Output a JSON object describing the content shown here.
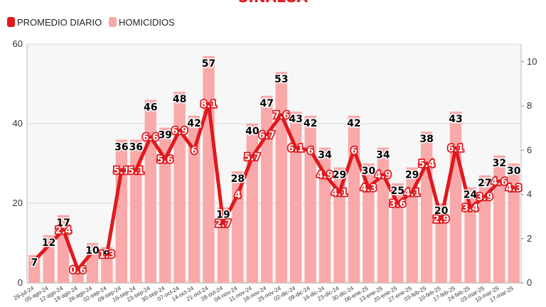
{
  "chart_data": {
    "type": "bar",
    "title": "SINALOA",
    "legend": [
      {
        "label": "PROMEDIO DIARIO",
        "color": "#e0191e"
      },
      {
        "label": "HOMICIDIOS",
        "color": "#f9a9a9"
      }
    ],
    "categories": [
      "29-jul-24",
      "05-ago-24",
      "12-ago-24",
      "19-ago-24",
      "26-ago-24",
      "02-sep-24",
      "09-sep-24",
      "16-sep-24",
      "23-sep-24",
      "30-sep-24",
      "07-oct-24",
      "14-oct-24",
      "21-oct-24",
      "28-oct-24",
      "04-nov-24",
      "11-nov-24",
      "18-nov-24",
      "25-nov-24",
      "02-dic-24",
      "09-dic-24",
      "16-dic-24",
      "23-dic-24",
      "30-dic-24",
      "06-ene-25",
      "13-ene-25",
      "20-ene-25",
      "27-ene-25",
      "03-feb-25",
      "10-feb-25",
      "17-feb-25",
      "24-feb-25",
      "03-mar-25",
      "10-mar-25",
      "17-mar-25"
    ],
    "series": [
      {
        "name": "HOMICIDIOS",
        "type": "bar",
        "axis": "left",
        "color": "#f9a9a9",
        "values": [
          7,
          12,
          17,
          4,
          10,
          9,
          36,
          36,
          46,
          39,
          48,
          42,
          57,
          19,
          28,
          40,
          47,
          53,
          43,
          42,
          34,
          29,
          42,
          30,
          34,
          25,
          29,
          38,
          20,
          43,
          24,
          27,
          32,
          30
        ],
        "labels": [
          "7",
          "12",
          "17",
          "",
          "10",
          "9",
          "36",
          "36",
          "46",
          "39",
          "48",
          "42",
          "57",
          "19",
          "28",
          "40",
          "47",
          "53",
          "43",
          "42",
          "34",
          "29",
          "42",
          "30",
          "34",
          "25",
          "29",
          "38",
          "20",
          "43",
          "24",
          "27",
          "32",
          "30"
        ]
      },
      {
        "name": "PROMEDIO DIARIO",
        "type": "line",
        "axis": "right",
        "color": "#e0191e",
        "values": [
          1.0,
          1.7,
          2.4,
          0.6,
          1.4,
          1.3,
          5.1,
          5.1,
          6.6,
          5.6,
          6.9,
          6.0,
          8.1,
          2.7,
          4.0,
          5.7,
          6.7,
          7.6,
          6.1,
          6.0,
          4.9,
          4.1,
          6.0,
          4.3,
          4.9,
          3.6,
          4.1,
          5.4,
          2.9,
          6.1,
          3.4,
          3.9,
          4.6,
          4.3
        ],
        "labels": [
          "",
          "",
          "2.4",
          "0.6",
          "",
          "1.3",
          "5.1",
          "5.1",
          "6.6",
          "5.6",
          "6.9",
          "6",
          "8.1",
          "2.7",
          "4",
          "5.7",
          "6.7",
          "7.6",
          "6.1",
          "6",
          "4.9",
          "4.1",
          "6",
          "4.3",
          "4.9",
          "3.6",
          "4.1",
          "5.4",
          "2.9",
          "6.1",
          "3.4",
          "3.9",
          "4.6",
          "4.3"
        ]
      }
    ],
    "y_left": {
      "min": 0,
      "max": 60,
      "ticks": [
        0,
        20,
        40,
        60
      ]
    },
    "y_right": {
      "min": 0,
      "max": 10.8,
      "ticks": [
        0,
        2,
        4,
        6,
        8,
        10
      ]
    },
    "grid": true,
    "legend_position": "top-left"
  }
}
